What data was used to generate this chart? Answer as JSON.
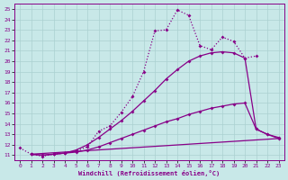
{
  "bg_color": "#c8e8e8",
  "grid_color": "#aad0d0",
  "line_color": "#880088",
  "xlabel": "Windchill (Refroidissement éolien,°C)",
  "xlim": [
    -0.5,
    23.5
  ],
  "ylim": [
    10.5,
    25.5
  ],
  "xticks": [
    0,
    1,
    2,
    3,
    4,
    5,
    6,
    7,
    8,
    9,
    10,
    11,
    12,
    13,
    14,
    15,
    16,
    17,
    18,
    19,
    20,
    21,
    22,
    23
  ],
  "yticks": [
    11,
    12,
    13,
    14,
    15,
    16,
    17,
    18,
    19,
    20,
    21,
    22,
    23,
    24,
    25
  ],
  "curve_dotted_x": [
    0,
    1,
    2,
    3,
    4,
    5,
    6,
    7,
    8,
    9,
    10,
    11,
    12,
    13,
    14,
    15,
    16,
    17,
    18,
    19,
    20,
    21
  ],
  "curve_dotted_y": [
    11.7,
    11.1,
    10.9,
    11.1,
    11.2,
    11.4,
    11.8,
    13.3,
    13.8,
    15.1,
    16.6,
    19.0,
    22.9,
    23.0,
    24.9,
    24.4,
    21.5,
    21.1,
    22.3,
    21.9,
    20.3,
    20.5
  ],
  "curve1_x": [
    1,
    2,
    3,
    4,
    5,
    6,
    7,
    8,
    9,
    10,
    11,
    12,
    13,
    14,
    15,
    16,
    17,
    18,
    19,
    20,
    21,
    22,
    23
  ],
  "curve1_y": [
    11.1,
    11.0,
    11.1,
    11.2,
    11.5,
    12.0,
    12.7,
    13.5,
    14.3,
    15.2,
    16.2,
    17.2,
    18.3,
    19.2,
    20.0,
    20.5,
    20.8,
    20.9,
    20.8,
    20.3,
    13.5,
    13.0,
    12.6
  ],
  "curve2_x": [
    1,
    2,
    3,
    4,
    5,
    6,
    7,
    8,
    9,
    10,
    11,
    12,
    13,
    14,
    15,
    16,
    17,
    18,
    19,
    20,
    21,
    22,
    23
  ],
  "curve2_y": [
    11.1,
    11.0,
    11.1,
    11.2,
    11.3,
    11.5,
    11.8,
    12.2,
    12.6,
    13.0,
    13.4,
    13.8,
    14.2,
    14.5,
    14.9,
    15.2,
    15.5,
    15.7,
    15.9,
    16.0,
    13.5,
    13.0,
    12.7
  ],
  "curve3_x": [
    1,
    23
  ],
  "curve3_y": [
    11.1,
    12.6
  ]
}
